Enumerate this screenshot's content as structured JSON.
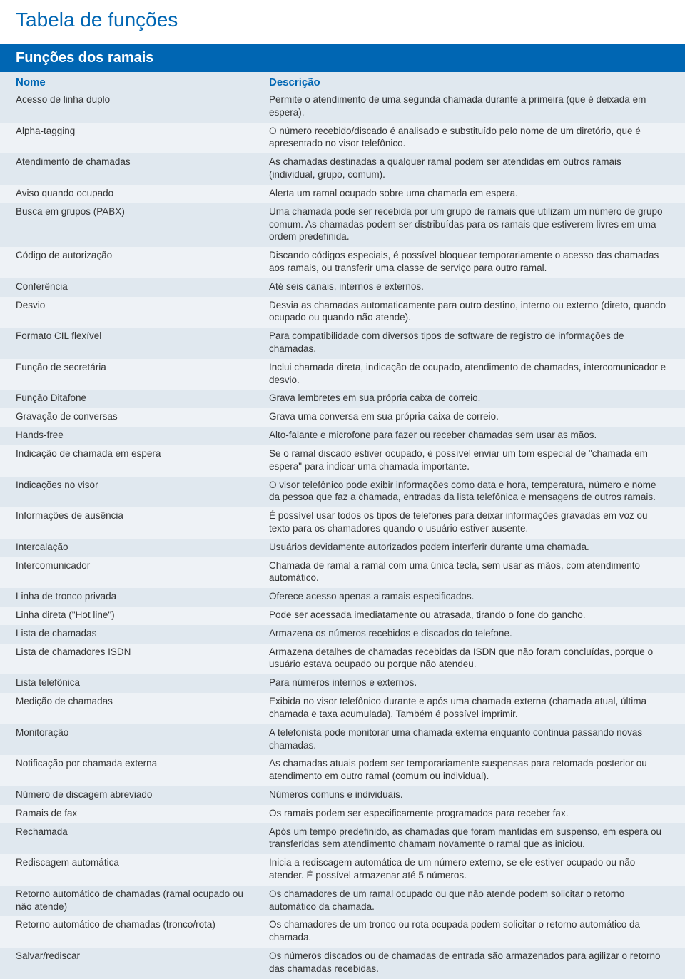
{
  "colors": {
    "brand_blue": "#0066b3",
    "row_odd_bg": "#e0e8ef",
    "row_even_bg": "#eef2f6",
    "text": "#343434",
    "white": "#ffffff"
  },
  "page_title": "Tabela de funções",
  "section_header": "Funções dos ramais",
  "columns": {
    "name": "Nome",
    "description": "Descrição"
  },
  "rows": [
    {
      "name": "Acesso de linha duplo",
      "desc": "Permite o atendimento de uma segunda chamada durante a primeira (que é deixada em espera)."
    },
    {
      "name": "Alpha-tagging",
      "desc": "O número recebido/discado é analisado e substituído pelo nome de um diretório, que é apresentado no visor telefônico."
    },
    {
      "name": "Atendimento de chamadas",
      "desc": "As chamadas destinadas a qualquer ramal podem ser atendidas em outros ramais (individual, grupo, comum)."
    },
    {
      "name": "Aviso quando ocupado",
      "desc": "Alerta um ramal ocupado sobre uma chamada em espera."
    },
    {
      "name": "Busca em grupos (PABX)",
      "desc": "Uma chamada pode ser recebida por um grupo de ramais que utilizam um número de grupo comum. As chamadas podem ser distribuídas para os ramais que estiverem livres em uma ordem predefinida."
    },
    {
      "name": "Código de autorização",
      "desc": "Discando códigos especiais, é possível bloquear temporariamente o acesso das chamadas aos ramais, ou transferir uma classe de serviço para outro ramal."
    },
    {
      "name": "Conferência",
      "desc": "Até seis canais, internos e externos."
    },
    {
      "name": "Desvio",
      "desc": "Desvia as chamadas automaticamente para outro destino, interno ou externo (direto, quando ocupado ou quando não atende)."
    },
    {
      "name": "Formato CIL flexível",
      "desc": "Para compatibilidade com diversos tipos de software de registro de informações de chamadas."
    },
    {
      "name": "Função de secretária",
      "desc": "Inclui chamada direta, indicação de ocupado, atendimento de chamadas, intercomunicador e desvio."
    },
    {
      "name": "Função Ditafone",
      "desc": "Grava lembretes em sua própria caixa de correio."
    },
    {
      "name": "Gravação de conversas",
      "desc": "Grava uma conversa em sua própria caixa de correio."
    },
    {
      "name": "Hands-free",
      "desc": "Alto-falante e microfone para fazer ou receber chamadas sem usar as mãos."
    },
    {
      "name": "Indicação de chamada em espera",
      "desc": "Se o ramal discado estiver ocupado, é possível enviar um tom especial de \"chamada em espera\" para indicar uma chamada importante."
    },
    {
      "name": "Indicações no visor",
      "desc": "O visor telefônico pode exibir informações como data e hora, temperatura, número e nome da pessoa que faz a chamada, entradas da lista telefônica e mensagens de outros ramais."
    },
    {
      "name": "Informações de ausência",
      "desc": "É possível usar todos os tipos de telefones para deixar informações gravadas em voz ou texto para os chamadores quando o usuário estiver ausente."
    },
    {
      "name": "Intercalação",
      "desc": "Usuários devidamente autorizados podem interferir durante uma chamada."
    },
    {
      "name": "Intercomunicador",
      "desc": "Chamada de ramal a ramal com uma única tecla, sem usar as mãos, com atendimento automático."
    },
    {
      "name": "Linha de tronco privada",
      "desc": "Oferece acesso apenas a ramais especificados."
    },
    {
      "name": "Linha direta (\"Hot line\")",
      "desc": "Pode ser acessada imediatamente ou atrasada, tirando o fone do gancho."
    },
    {
      "name": "Lista de chamadas",
      "desc": "Armazena os números recebidos e discados do telefone."
    },
    {
      "name": "Lista de chamadores ISDN",
      "desc": "Armazena detalhes de chamadas recebidas da ISDN que não foram concluídas, porque o usuário estava ocupado ou porque não atendeu."
    },
    {
      "name": "Lista telefônica",
      "desc": "Para números internos e externos."
    },
    {
      "name": "Medição de chamadas",
      "desc": "Exibida no visor telefônico durante e após uma chamada externa (chamada atual, última chamada e taxa acumulada). Também é possível imprimir."
    },
    {
      "name": "Monitoração",
      "desc": "A telefonista pode monitorar uma chamada externa enquanto continua passando novas chamadas."
    },
    {
      "name": "Notificação por chamada externa",
      "desc": "As chamadas atuais podem ser temporariamente suspensas para retomada posterior ou atendimento em outro ramal (comum ou individual)."
    },
    {
      "name": "Número de discagem abreviado",
      "desc": "Números comuns e individuais."
    },
    {
      "name": "Ramais de fax",
      "desc": "Os ramais podem ser especificamente programados para receber fax."
    },
    {
      "name": "Rechamada",
      "desc": "Após um tempo predefinido, as chamadas que foram mantidas em suspenso, em espera ou transferidas sem atendimento chamam novamente o ramal que as iniciou."
    },
    {
      "name": "Rediscagem automática",
      "desc": "Inicia a rediscagem automática de um número externo, se ele estiver ocupado ou não atender.  É possível armazenar até 5 números."
    },
    {
      "name": "Retorno automático de chamadas (ramal ocupado ou não atende)",
      "desc": "Os chamadores de um ramal ocupado ou que não atende podem solicitar o retorno automático da chamada."
    },
    {
      "name": "Retorno automático de chamadas (tronco/rota)",
      "desc": "Os chamadores de um tronco ou rota ocupada podem solicitar o retorno automático da chamada."
    },
    {
      "name": "Salvar/rediscar",
      "desc": "Os números discados ou de chamadas de entrada são armazenados para agilizar o retorno das chamadas recebidas."
    }
  ]
}
